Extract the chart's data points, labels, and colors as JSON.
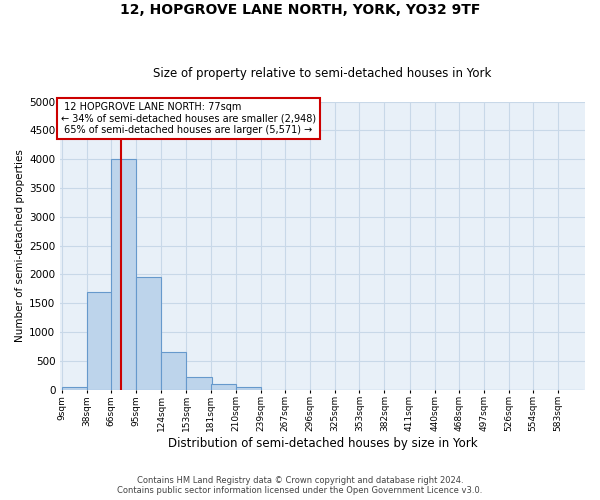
{
  "title_line1": "12, HOPGROVE LANE NORTH, YORK, YO32 9TF",
  "title_line2": "Size of property relative to semi-detached houses in York",
  "xlabel": "Distribution of semi-detached houses by size in York",
  "ylabel": "Number of semi-detached properties",
  "footnote": "Contains HM Land Registry data © Crown copyright and database right 2024.\nContains public sector information licensed under the Open Government Licence v3.0.",
  "property_label": "12 HOPGROVE LANE NORTH: 77sqm",
  "smaller_pct": "34%",
  "smaller_n": "2,948",
  "larger_pct": "65%",
  "larger_n": "5,571",
  "bin_labels": [
    "9sqm",
    "38sqm",
    "66sqm",
    "95sqm",
    "124sqm",
    "153sqm",
    "181sqm",
    "210sqm",
    "239sqm",
    "267sqm",
    "296sqm",
    "325sqm",
    "353sqm",
    "382sqm",
    "411sqm",
    "440sqm",
    "468sqm",
    "497sqm",
    "526sqm",
    "554sqm",
    "583sqm"
  ],
  "bar_values": [
    50,
    1700,
    4000,
    1950,
    650,
    220,
    100,
    50,
    0,
    0,
    0,
    0,
    0,
    0,
    0,
    0,
    0,
    0,
    0,
    0,
    0
  ],
  "bin_width": 29,
  "bar_color": "#bdd4eb",
  "bar_edge_color": "#6699cc",
  "vline_color": "#cc0000",
  "vline_x": 77,
  "ylim": [
    0,
    5000
  ],
  "yticks": [
    0,
    500,
    1000,
    1500,
    2000,
    2500,
    3000,
    3500,
    4000,
    4500,
    5000
  ],
  "grid_color": "#c8d8e8",
  "bg_color": "#e8f0f8"
}
